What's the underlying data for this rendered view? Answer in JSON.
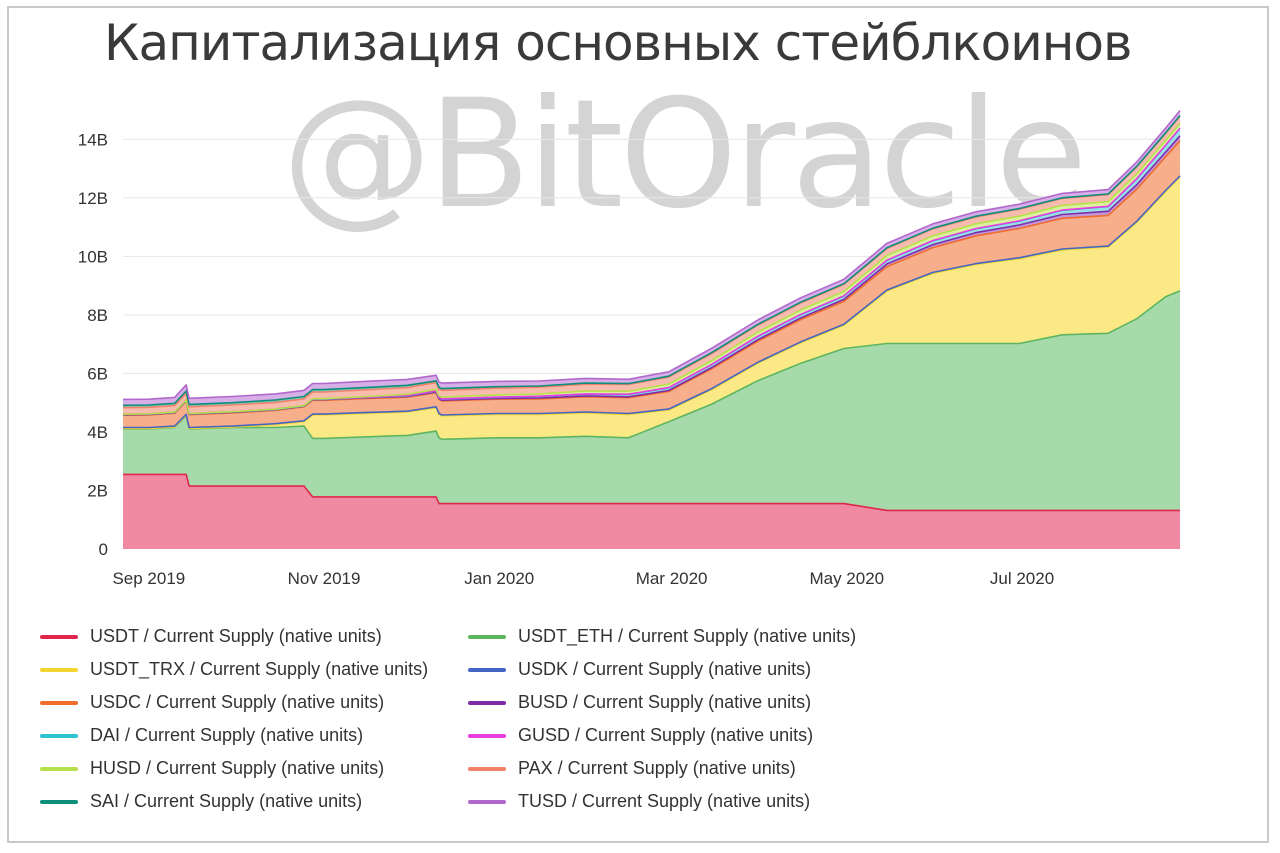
{
  "title": "Капитализация основных стейблкоинов",
  "watermark": "@BitOracle",
  "chart_data": {
    "type": "area",
    "stacked": true,
    "x": [
      "2019-08-23",
      "2019-09-01",
      "2019-09-10",
      "2019-09-14",
      "2019-09-15",
      "2019-09-30",
      "2019-10-15",
      "2019-10-25",
      "2019-10-28",
      "2019-11-01",
      "2019-11-15",
      "2019-11-30",
      "2019-12-10",
      "2019-12-11",
      "2019-12-12",
      "2019-12-31",
      "2020-01-15",
      "2020-01-31",
      "2020-02-15",
      "2020-02-29",
      "2020-03-15",
      "2020-03-31",
      "2020-04-15",
      "2020-04-30",
      "2020-05-15",
      "2020-05-31",
      "2020-06-15",
      "2020-06-30",
      "2020-07-15",
      "2020-07-31",
      "2020-08-10",
      "2020-08-20",
      "2020-08-25"
    ],
    "ylim": [
      0,
      15000000000
    ],
    "yticks": [
      0,
      2000000000,
      4000000000,
      6000000000,
      8000000000,
      10000000000,
      12000000000,
      14000000000
    ],
    "ytick_labels": [
      "0",
      "2B",
      "4B",
      "6B",
      "8B",
      "10B",
      "12B",
      "14B"
    ],
    "xticks": [
      "2019-09-01",
      "2019-11-01",
      "2020-01-01",
      "2020-03-01",
      "2020-05-01",
      "2020-07-01"
    ],
    "xtick_labels": [
      "Sep 2019",
      "Nov 2019",
      "Jan 2020",
      "Mar 2020",
      "May 2020",
      "Jul 2020"
    ],
    "grid": true,
    "legend_position": "bottom",
    "series": [
      {
        "name": "USDT / Current Supply (native units)",
        "color": "#e0264d",
        "fill": "#ef8aa2",
        "values": [
          2550000000,
          2550000000,
          2550000000,
          2550000000,
          2150000000,
          2150000000,
          2150000000,
          2150000000,
          1780000000,
          1780000000,
          1780000000,
          1780000000,
          1780000000,
          1550000000,
          1550000000,
          1550000000,
          1550000000,
          1550000000,
          1550000000,
          1550000000,
          1550000000,
          1550000000,
          1550000000,
          1550000000,
          1320000000,
          1320000000,
          1320000000,
          1320000000,
          1320000000,
          1320000000,
          1320000000,
          1320000000,
          1320000000
        ]
      },
      {
        "name": "USDT_ETH / Current Supply (native units)",
        "color": "#5db560",
        "fill": "#a6daaa",
        "values": [
          1550000000,
          1550000000,
          1600000000,
          2000000000,
          1950000000,
          2000000000,
          2000000000,
          2050000000,
          2000000000,
          2000000000,
          2050000000,
          2100000000,
          2250000000,
          2250000000,
          2200000000,
          2250000000,
          2250000000,
          2300000000,
          2250000000,
          2800000000,
          3400000000,
          4200000000,
          4800000000,
          5300000000,
          5700000000,
          5700000000,
          5700000000,
          5700000000,
          6000000000,
          6050000000,
          6550000000,
          7300000000,
          7500000000
        ]
      },
      {
        "name": "USDT_TRX / Current Supply (native units)",
        "color": "#f2d531",
        "fill": "#fbe985",
        "values": [
          20000000,
          20000000,
          20000000,
          20000000,
          20000000,
          20000000,
          100000000,
          150000000,
          800000000,
          800000000,
          800000000,
          800000000,
          800000000,
          800000000,
          800000000,
          800000000,
          800000000,
          800000000,
          800000000,
          400000000,
          500000000,
          600000000,
          700000000,
          800000000,
          1800000000,
          2400000000,
          2700000000,
          2900000000,
          2900000000,
          2950000000,
          3300000000,
          3600000000,
          3900000000
        ]
      },
      {
        "name": "USDK / Current Supply (native units)",
        "color": "#4466c2",
        "fill": "#a9b9e4",
        "values": [
          30000000,
          30000000,
          30000000,
          30000000,
          30000000,
          30000000,
          30000000,
          30000000,
          30000000,
          30000000,
          30000000,
          30000000,
          30000000,
          30000000,
          30000000,
          30000000,
          30000000,
          30000000,
          30000000,
          30000000,
          30000000,
          30000000,
          30000000,
          30000000,
          30000000,
          30000000,
          30000000,
          30000000,
          30000000,
          30000000,
          30000000,
          30000000,
          30000000
        ]
      },
      {
        "name": "USDC / Current Supply (native units)",
        "color": "#ef6d2d",
        "fill": "#f7ae8a",
        "values": [
          420000000,
          430000000,
          440000000,
          450000000,
          440000000,
          450000000,
          460000000,
          480000000,
          470000000,
          470000000,
          480000000,
          480000000,
          480000000,
          480000000,
          480000000,
          490000000,
          500000000,
          520000000,
          540000000,
          600000000,
          680000000,
          720000000,
          760000000,
          780000000,
          800000000,
          850000000,
          950000000,
          1000000000,
          1050000000,
          1050000000,
          1100000000,
          1150000000,
          1200000000
        ]
      },
      {
        "name": "BUSD / Current Supply (native units)",
        "color": "#7f2ca8",
        "fill": "#c396da",
        "values": [
          20000000,
          20000000,
          20000000,
          20000000,
          20000000,
          20000000,
          20000000,
          20000000,
          25000000,
          25000000,
          25000000,
          25000000,
          25000000,
          25000000,
          25000000,
          25000000,
          30000000,
          30000000,
          30000000,
          35000000,
          40000000,
          50000000,
          60000000,
          70000000,
          90000000,
          100000000,
          110000000,
          120000000,
          130000000,
          140000000,
          150000000,
          160000000,
          170000000
        ]
      },
      {
        "name": "DAI / Current Supply (native units)",
        "color": "#2ec4d0",
        "fill": "#97e2e8",
        "values": [
          10000000,
          10000000,
          10000000,
          10000000,
          10000000,
          10000000,
          10000000,
          10000000,
          10000000,
          10000000,
          10000000,
          20000000,
          30000000,
          35000000,
          35000000,
          40000000,
          50000000,
          60000000,
          80000000,
          90000000,
          100000000,
          110000000,
          110000000,
          110000000,
          120000000,
          130000000,
          130000000,
          130000000,
          140000000,
          160000000,
          200000000,
          230000000,
          250000000
        ]
      },
      {
        "name": "GUSD / Current Supply (native units)",
        "color": "#e93be2",
        "fill": "#f4a4f0",
        "values": [
          10000000,
          10000000,
          10000000,
          10000000,
          10000000,
          10000000,
          10000000,
          10000000,
          10000000,
          10000000,
          10000000,
          10000000,
          10000000,
          10000000,
          10000000,
          10000000,
          10000000,
          10000000,
          10000000,
          10000000,
          10000000,
          10000000,
          10000000,
          10000000,
          10000000,
          10000000,
          10000000,
          10000000,
          10000000,
          10000000,
          10000000,
          10000000,
          10000000
        ]
      },
      {
        "name": "HUSD / Current Supply (native units)",
        "color": "#b8e04a",
        "fill": "#dcf0a2",
        "values": [
          0,
          0,
          0,
          0,
          0,
          0,
          0,
          0,
          10000000,
          10000000,
          20000000,
          40000000,
          50000000,
          50000000,
          60000000,
          70000000,
          80000000,
          100000000,
          100000000,
          120000000,
          130000000,
          140000000,
          150000000,
          150000000,
          160000000,
          160000000,
          160000000,
          160000000,
          160000000,
          160000000,
          160000000,
          160000000,
          160000000
        ]
      },
      {
        "name": "PAX / Current Supply (native units)",
        "color": "#f1836b",
        "fill": "#f8bcae",
        "values": [
          220000000,
          220000000,
          220000000,
          230000000,
          230000000,
          230000000,
          230000000,
          230000000,
          230000000,
          230000000,
          230000000,
          230000000,
          230000000,
          230000000,
          230000000,
          230000000,
          230000000,
          230000000,
          230000000,
          240000000,
          240000000,
          240000000,
          240000000,
          240000000,
          240000000,
          240000000,
          240000000,
          240000000,
          240000000,
          240000000,
          240000000,
          240000000,
          250000000
        ]
      },
      {
        "name": "SAI / Current Supply (native units)",
        "color": "#0d8f7c",
        "fill": "#7cc7bb",
        "values": [
          80000000,
          80000000,
          80000000,
          80000000,
          80000000,
          80000000,
          80000000,
          80000000,
          80000000,
          80000000,
          80000000,
          80000000,
          60000000,
          60000000,
          60000000,
          50000000,
          40000000,
          40000000,
          30000000,
          30000000,
          30000000,
          25000000,
          25000000,
          25000000,
          25000000,
          20000000,
          20000000,
          20000000,
          20000000,
          20000000,
          20000000,
          20000000,
          20000000
        ]
      },
      {
        "name": "TUSD / Current Supply (native units)",
        "color": "#b068cc",
        "fill": "#d7aee6",
        "values": [
          200000000,
          200000000,
          200000000,
          210000000,
          210000000,
          210000000,
          210000000,
          210000000,
          210000000,
          210000000,
          210000000,
          200000000,
          190000000,
          190000000,
          190000000,
          180000000,
          170000000,
          160000000,
          150000000,
          150000000,
          150000000,
          150000000,
          150000000,
          150000000,
          150000000,
          150000000,
          150000000,
          150000000,
          150000000,
          150000000,
          150000000,
          160000000,
          170000000
        ]
      }
    ]
  }
}
